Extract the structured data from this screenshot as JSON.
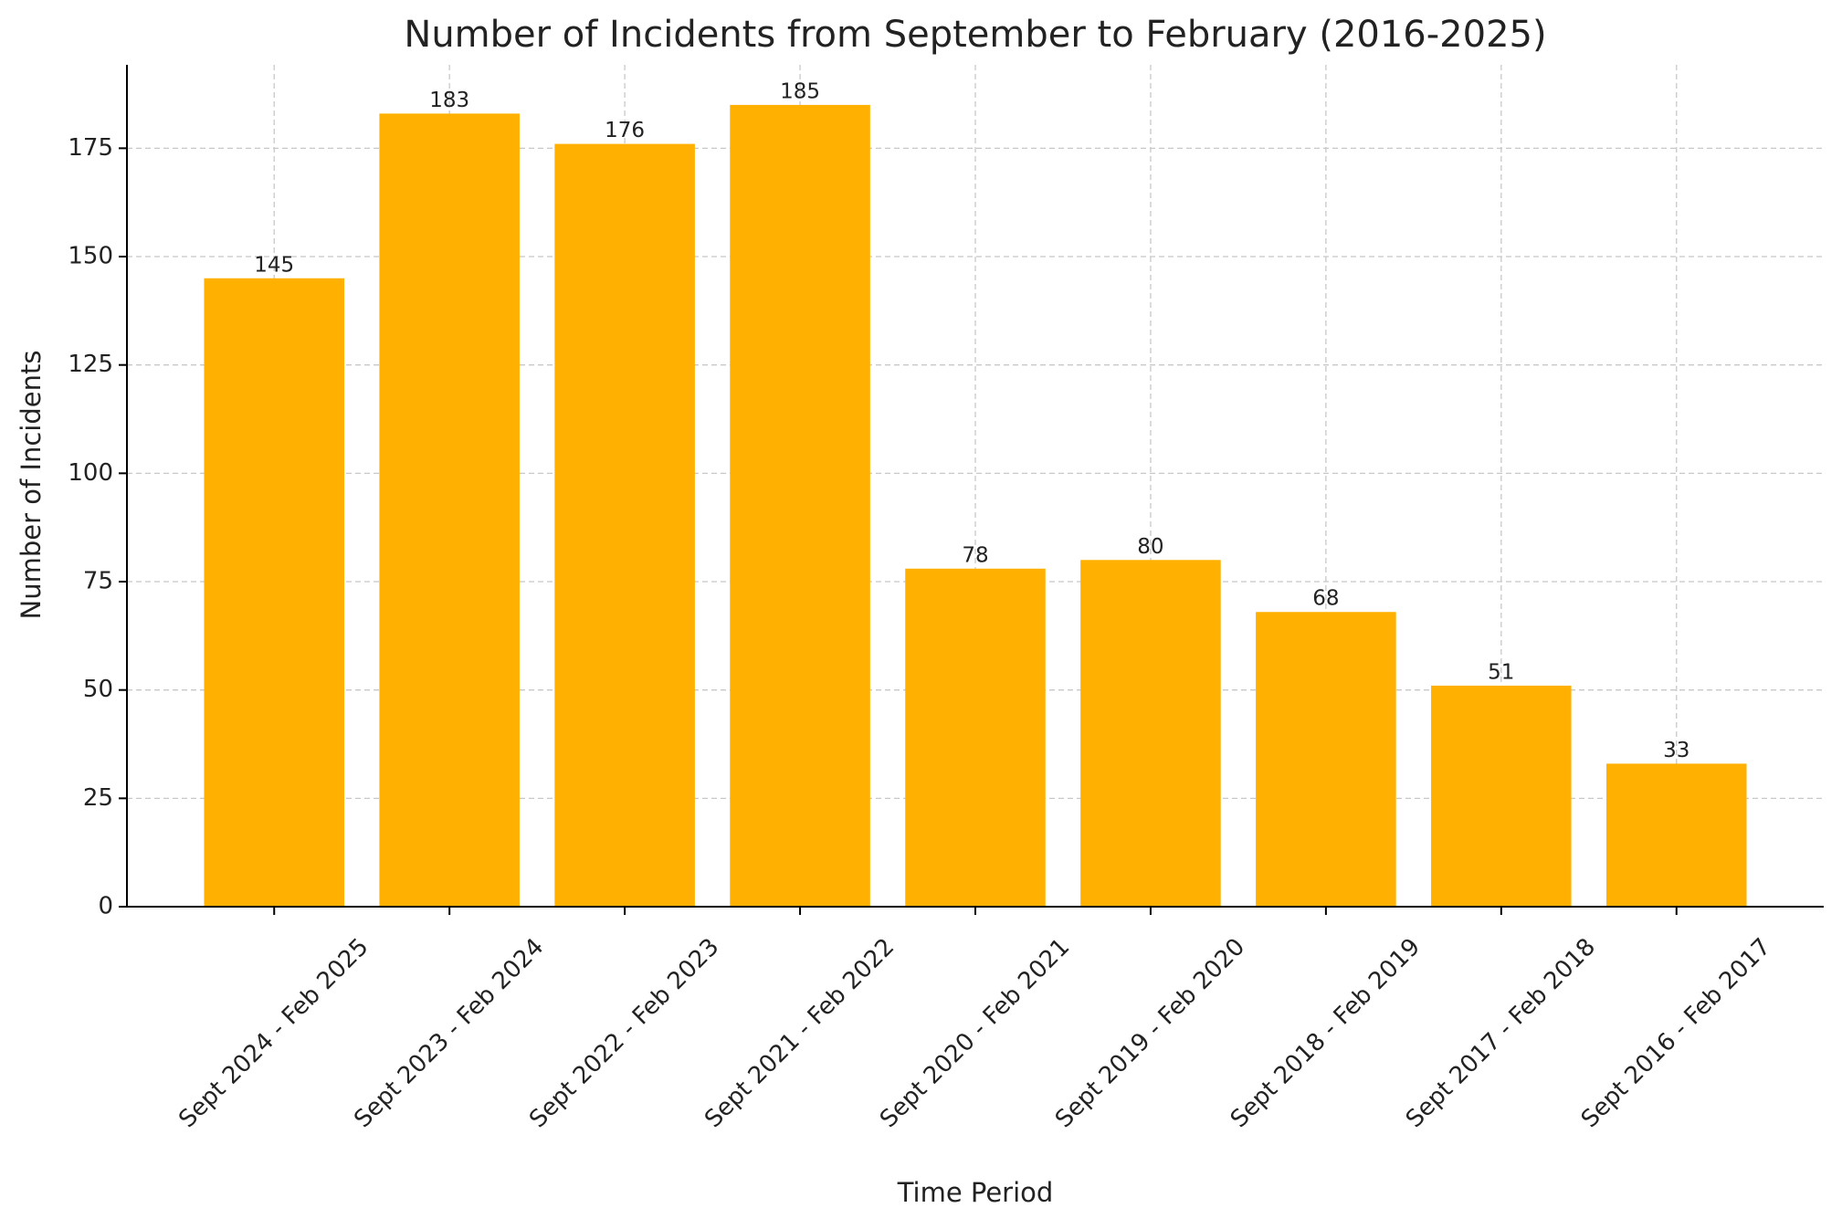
{
  "chart_data": {
    "type": "bar",
    "title": "Number of Incidents from September to February (2016-2025)",
    "x_label": "Time Period",
    "y_label": "Number of Incidents",
    "categories": [
      "Sept 2024 - Feb 2025",
      "Sept 2023 - Feb 2024",
      "Sept 2022 - Feb 2023",
      "Sept 2021 - Feb 2022",
      "Sept 2020 - Feb 2021",
      "Sept 2019 - Feb 2020",
      "Sept 2018 - Feb 2019",
      "Sept 2017 - Feb 2018",
      "Sept 2016 - Feb 2017"
    ],
    "values": [
      145,
      183,
      176,
      185,
      78,
      80,
      68,
      51,
      33
    ],
    "color": "#ffb000",
    "ylim": [
      0,
      194.25
    ],
    "yticks": [
      0,
      25,
      50,
      75,
      100,
      125,
      150,
      175
    ],
    "grid": true
  }
}
